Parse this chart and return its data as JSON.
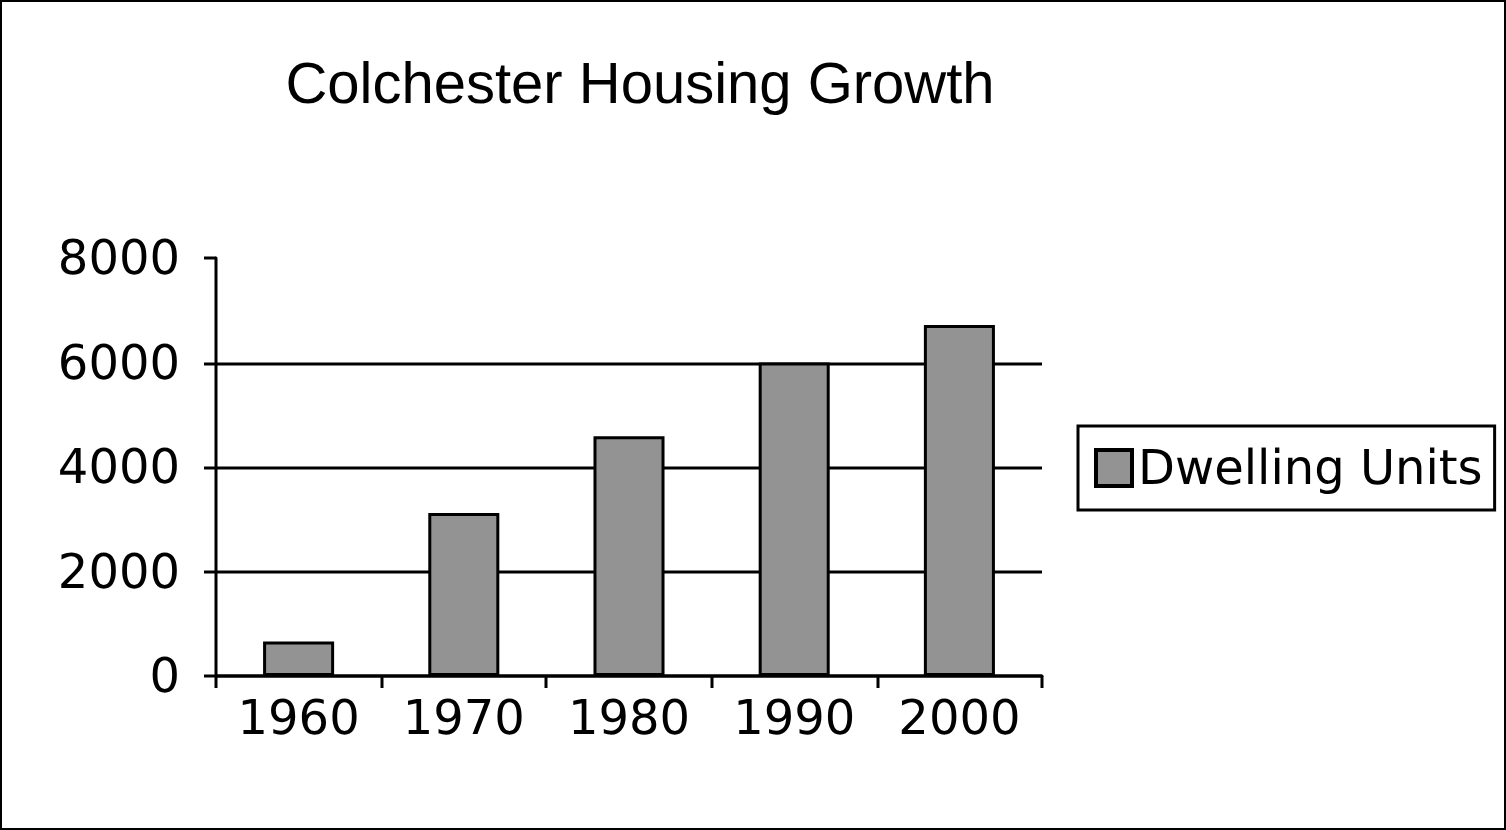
{
  "chart_data": {
    "type": "bar",
    "title": "Colchester Housing Growth",
    "categories": [
      "1960",
      "1970",
      "1980",
      "1990",
      "2000"
    ],
    "series": [
      {
        "name": "Dwelling Units",
        "color": "#939393",
        "values": [
          660,
          3120,
          4590,
          6000,
          6720
        ]
      }
    ],
    "ylim": [
      0,
      8000
    ],
    "yticks": [
      0,
      2000,
      4000,
      6000,
      8000
    ],
    "grid": "y",
    "legend": "right"
  }
}
